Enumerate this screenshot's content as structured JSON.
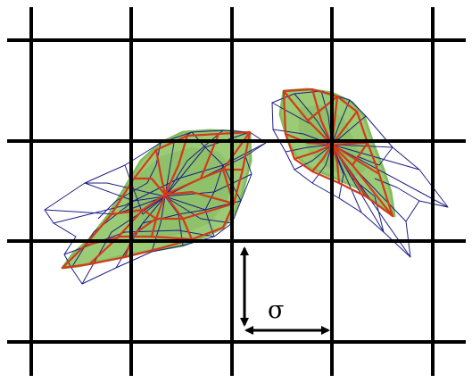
{
  "figure": {
    "sigma_label": "σ"
  },
  "colors": {
    "grid": "#000000",
    "blob_fill": "#9bcb74",
    "blob_fill_dark": "#7fb85a",
    "red_mesh": "#d33a1a",
    "blue_mesh": "#1d1d86",
    "arrow": "#000000"
  },
  "shapes": [
    {
      "name": "left-leaf-shape"
    },
    {
      "name": "right-leaf-shape"
    }
  ]
}
